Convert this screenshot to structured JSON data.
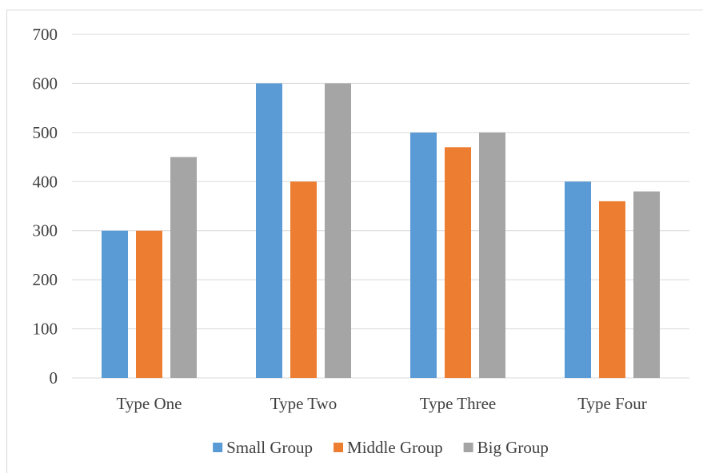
{
  "chart_data": {
    "type": "bar",
    "categories": [
      "Type One",
      "Type Two",
      "Type Three",
      "Type Four"
    ],
    "series": [
      {
        "name": "Small Group",
        "values": [
          300,
          600,
          500,
          400
        ],
        "color": "#5b9bd5"
      },
      {
        "name": "Middle Group",
        "values": [
          300,
          400,
          470,
          360
        ],
        "color": "#ed7d31"
      },
      {
        "name": "Big Group",
        "values": [
          450,
          600,
          500,
          380
        ],
        "color": "#a5a5a5"
      }
    ],
    "ylim": [
      0,
      700
    ],
    "yticks": [
      0,
      100,
      200,
      300,
      400,
      500,
      600,
      700
    ],
    "grid": true,
    "legend": "bottom",
    "gridline_color": "#d9d9d9",
    "text_color": "#404040"
  }
}
